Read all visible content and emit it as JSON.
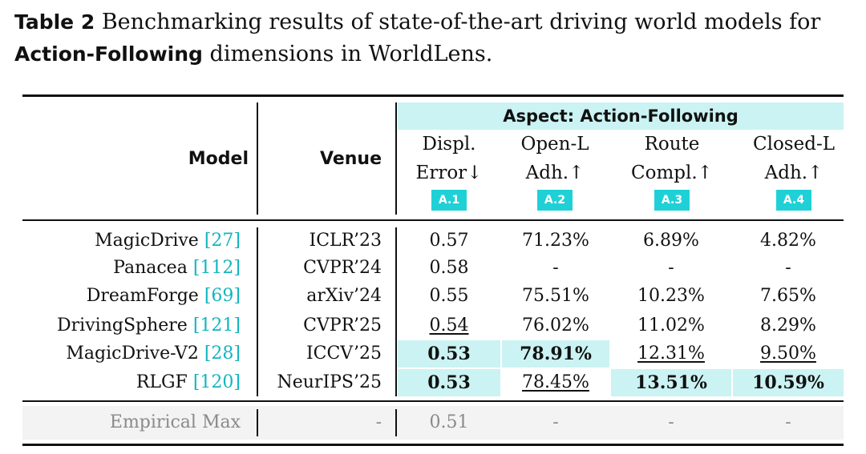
{
  "caption": {
    "label": "Table 2",
    "text_before": " Benchmarking results of state-of-the-art driving world models for ",
    "bold_term": "Action-Following",
    "text_after": " dimensions in WorldLens."
  },
  "header": {
    "model": "Model",
    "venue": "Venue",
    "aspect": "Aspect: Action-Following",
    "columns": [
      {
        "line1": "Displ.",
        "line2": "Error↓",
        "badge": "A.1"
      },
      {
        "line1": "Open-L",
        "line2": "Adh.↑",
        "badge": "A.2"
      },
      {
        "line1": "Route",
        "line2": "Compl.↑",
        "badge": "A.3"
      },
      {
        "line1": "Closed-L",
        "line2": "Adh.↑",
        "badge": "A.4"
      }
    ]
  },
  "rows": [
    {
      "name": "MagicDrive",
      "cite": "[27]",
      "venue": "ICLR’23",
      "values": [
        "0.57",
        "71.23%",
        "6.89%",
        "4.82%"
      ]
    },
    {
      "name": "Panacea",
      "cite": "[112]",
      "venue": "CVPR’24",
      "values": [
        "0.58",
        "-",
        "-",
        "-"
      ]
    },
    {
      "name": "DreamForge",
      "cite": "[69]",
      "venue": "arXiv’24",
      "values": [
        "0.55",
        "75.51%",
        "10.23%",
        "7.65%"
      ]
    },
    {
      "name": "DrivingSphere",
      "cite": "[121]",
      "venue": "CVPR’25",
      "values": [
        "0.54",
        "76.02%",
        "11.02%",
        "8.29%"
      ]
    },
    {
      "name": "MagicDrive-V2",
      "cite": "[28]",
      "venue": "ICCV’25",
      "values": [
        "0.53",
        "78.91%",
        "12.31%",
        "9.50%"
      ]
    },
    {
      "name": "RLGF",
      "cite": "[120]",
      "venue": "NeurIPS’25",
      "values": [
        "0.53",
        "78.45%",
        "13.51%",
        "10.59%"
      ]
    }
  ],
  "empirical": {
    "name": "Empirical Max",
    "venue": "-",
    "values": [
      "0.51",
      "-",
      "-",
      "-"
    ]
  },
  "colors": {
    "highlight": "#cbf3f3",
    "badge": "#1fd1d6",
    "citation": "#12b5c0"
  }
}
